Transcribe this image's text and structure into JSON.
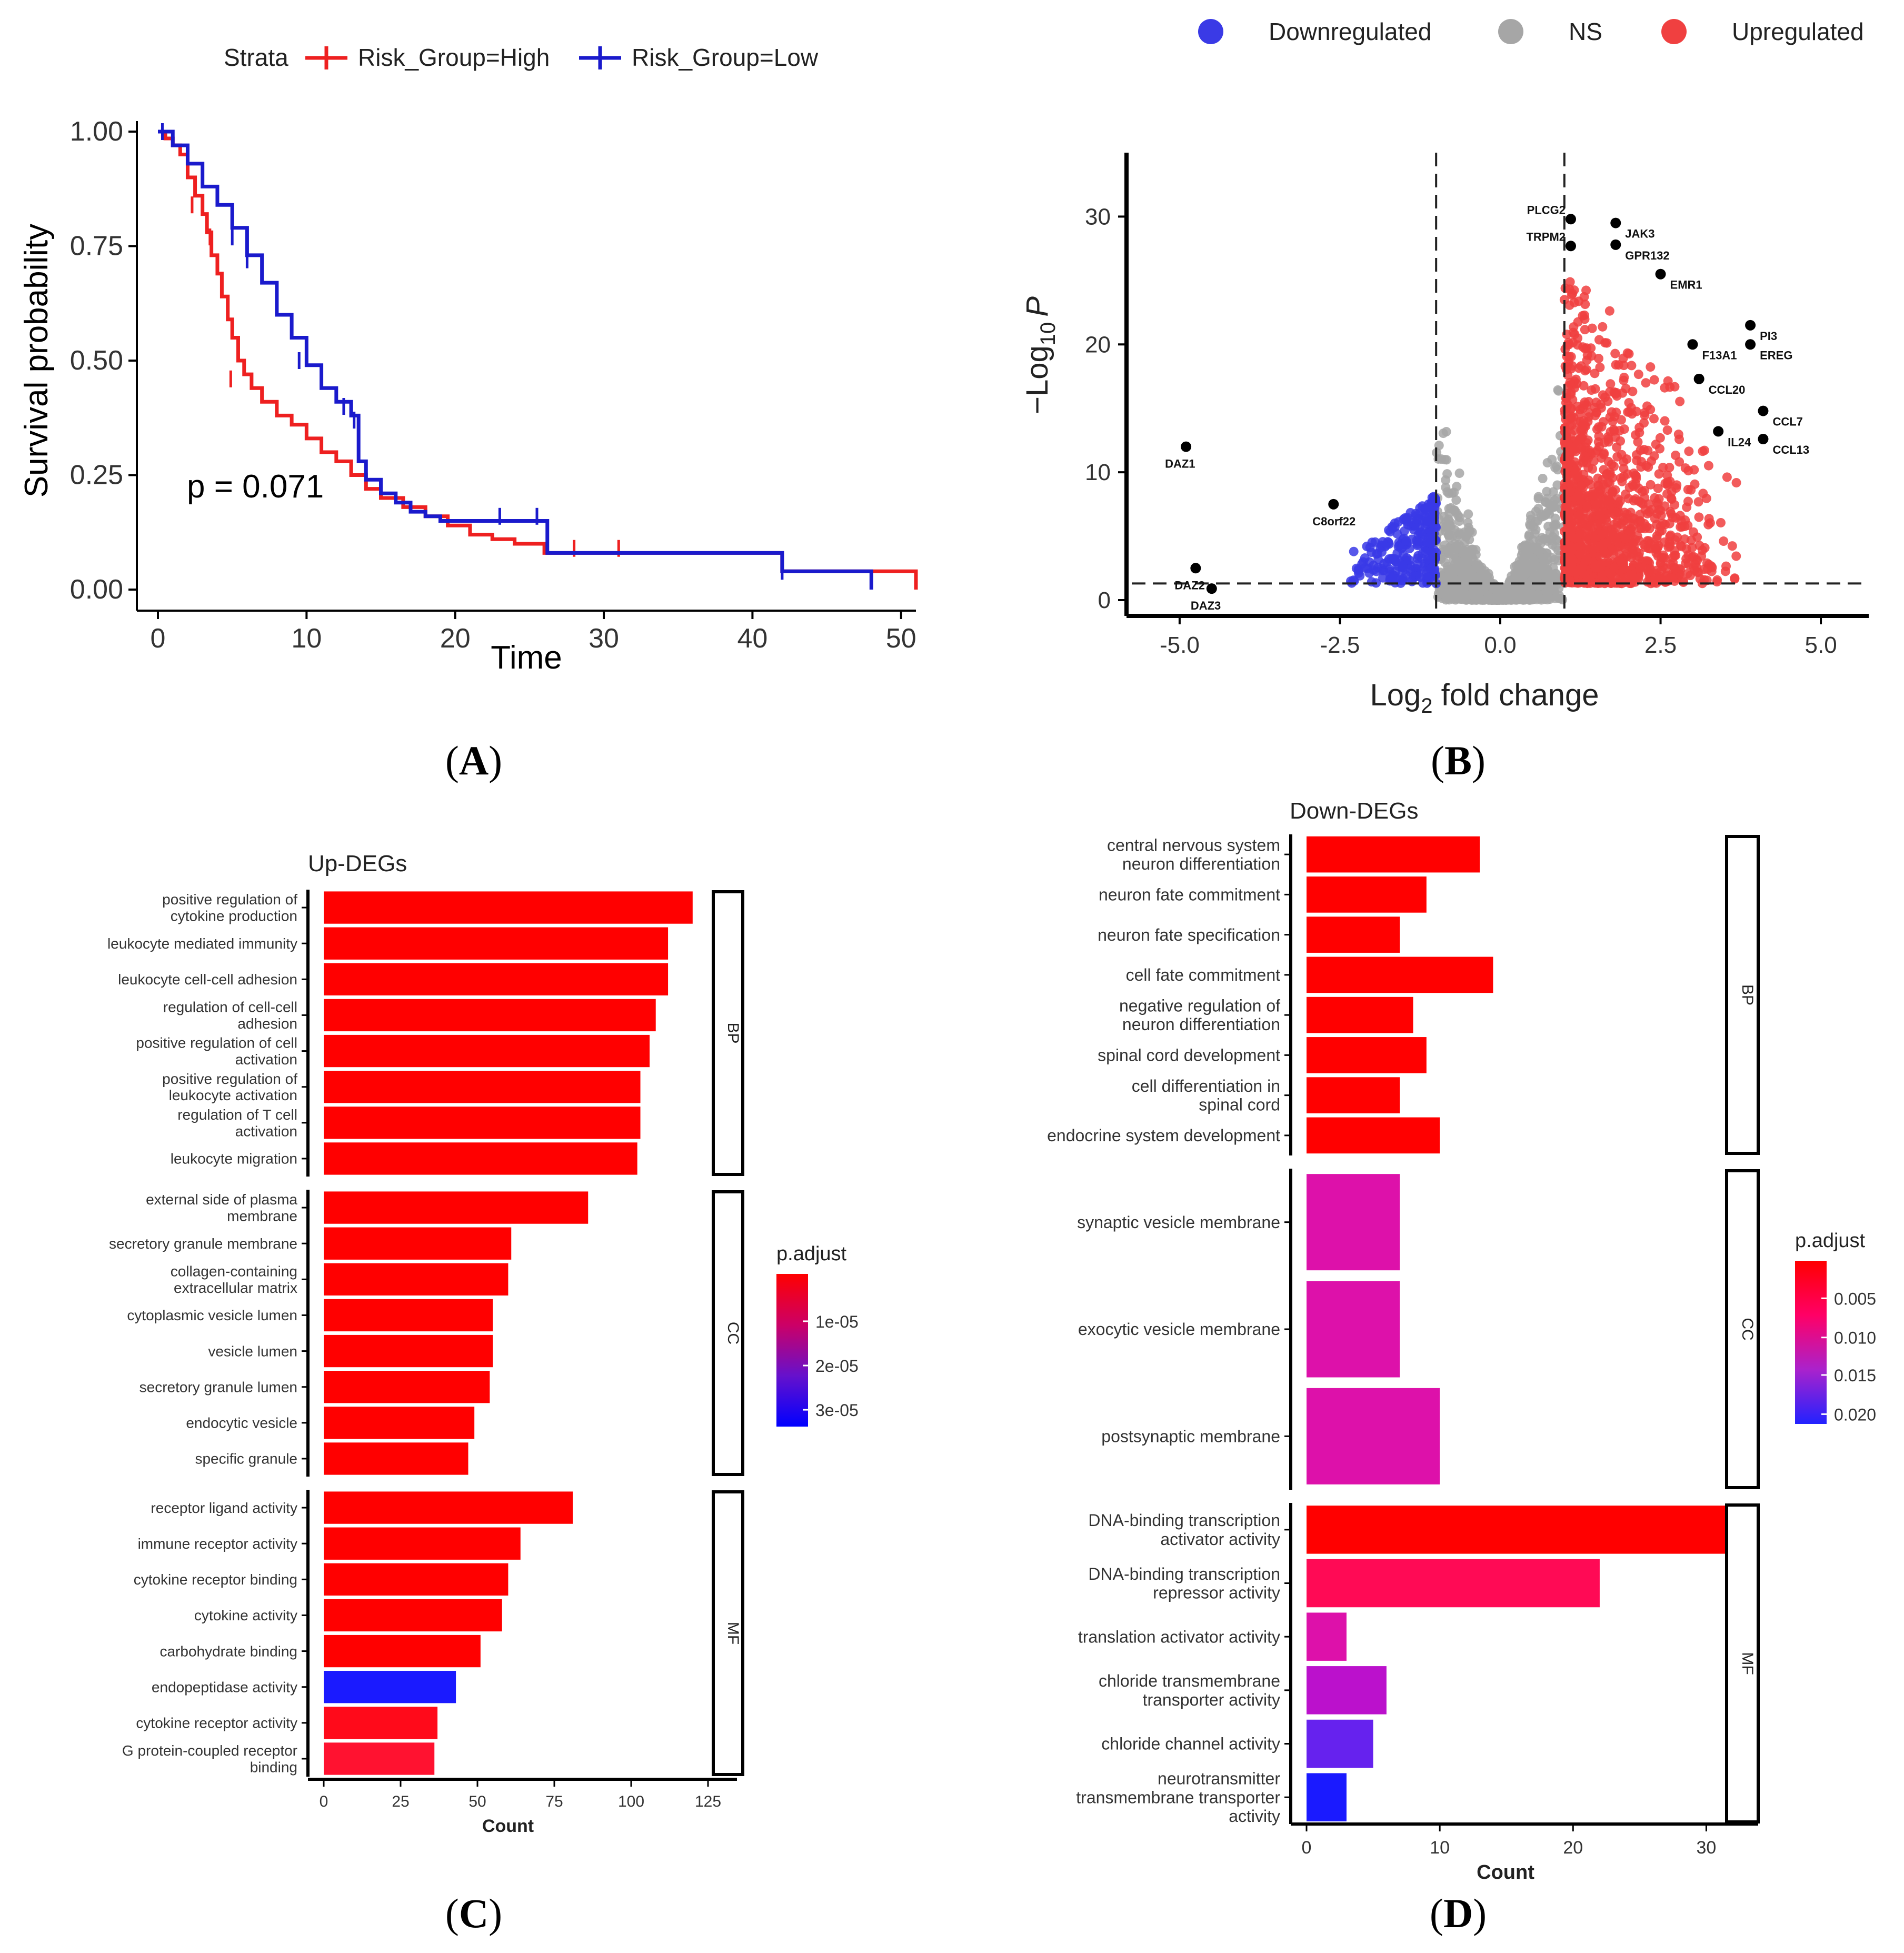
{
  "panels": {
    "A": "A",
    "B": "B",
    "C": "C",
    "D": "D"
  },
  "chart_data": [
    {
      "id": "A",
      "type": "line",
      "subtype": "kaplan-meier",
      "legend_title": "Strata",
      "legend_position": "top",
      "xlabel": "Time",
      "ylabel": "Survival probability",
      "xlim": [
        0,
        51
      ],
      "ylim": [
        0,
        1
      ],
      "xticks": [
        0,
        10,
        20,
        30,
        40,
        50
      ],
      "yticks": [
        0.0,
        0.25,
        0.5,
        0.75,
        1.0
      ],
      "ytick_labels": [
        "0.00",
        "0.25",
        "0.50",
        "0.75",
        "1.00"
      ],
      "annotation": "p = 0.071",
      "series": [
        {
          "name": "Risk_Group=High",
          "color": "#ee2020",
          "steps": [
            [
              0,
              1.0
            ],
            [
              0.5,
              0.985
            ],
            [
              1,
              0.97
            ],
            [
              1.5,
              0.95
            ],
            [
              2,
              0.9
            ],
            [
              2.5,
              0.86
            ],
            [
              3,
              0.82
            ],
            [
              3.3,
              0.78
            ],
            [
              3.6,
              0.73
            ],
            [
              4,
              0.69
            ],
            [
              4.3,
              0.64
            ],
            [
              4.7,
              0.59
            ],
            [
              5,
              0.55
            ],
            [
              5.4,
              0.5
            ],
            [
              5.8,
              0.47
            ],
            [
              6.3,
              0.44
            ],
            [
              7,
              0.41
            ],
            [
              8,
              0.38
            ],
            [
              9,
              0.36
            ],
            [
              10,
              0.33
            ],
            [
              11,
              0.3
            ],
            [
              12,
              0.28
            ],
            [
              13,
              0.25
            ],
            [
              14,
              0.22
            ],
            [
              15,
              0.2
            ],
            [
              16.5,
              0.18
            ],
            [
              18,
              0.16
            ],
            [
              19.5,
              0.14
            ],
            [
              21,
              0.12
            ],
            [
              22.5,
              0.11
            ],
            [
              24,
              0.1
            ],
            [
              26,
              0.08
            ],
            [
              42,
              0.04
            ],
            [
              51,
              0.0
            ]
          ],
          "censor": [
            [
              2.3,
              0.84
            ],
            [
              3.5,
              0.77
            ],
            [
              4.9,
              0.46
            ],
            [
              28,
              0.09
            ],
            [
              31,
              0.09
            ]
          ]
        },
        {
          "name": "Risk_Group=Low",
          "color": "#1a1acc",
          "steps": [
            [
              0,
              1.0
            ],
            [
              1,
              0.97
            ],
            [
              2,
              0.93
            ],
            [
              3,
              0.88
            ],
            [
              4,
              0.84
            ],
            [
              5,
              0.79
            ],
            [
              6,
              0.73
            ],
            [
              7,
              0.67
            ],
            [
              8,
              0.6
            ],
            [
              9,
              0.55
            ],
            [
              10,
              0.49
            ],
            [
              11,
              0.44
            ],
            [
              12,
              0.41
            ],
            [
              13,
              0.38
            ],
            [
              13.5,
              0.28
            ],
            [
              14,
              0.24
            ],
            [
              15,
              0.21
            ],
            [
              16,
              0.19
            ],
            [
              17,
              0.17
            ],
            [
              18,
              0.16
            ],
            [
              19,
              0.15
            ],
            [
              26,
              0.15
            ],
            [
              26.2,
              0.08
            ],
            [
              42,
              0.04
            ],
            [
              48,
              0.0
            ]
          ],
          "censor": [
            [
              0.3,
              1.0
            ],
            [
              5,
              0.77
            ],
            [
              6,
              0.72
            ],
            [
              8,
              0.63
            ],
            [
              9.5,
              0.5
            ],
            [
              12.5,
              0.4
            ],
            [
              13.2,
              0.37
            ],
            [
              23,
              0.16
            ],
            [
              25.5,
              0.16
            ],
            [
              42,
              0.04
            ]
          ]
        }
      ]
    },
    {
      "id": "B",
      "type": "scatter",
      "subtype": "volcano",
      "legend_position": "top",
      "legend": [
        {
          "label": "Downregulated",
          "color": "#3a3ae6"
        },
        {
          "label": "NS",
          "color": "#a6a6a6"
        },
        {
          "label": "Upregulated",
          "color": "#f04040"
        }
      ],
      "xlabel_main": "Log",
      "xlabel_sub": "2",
      "xlabel_tail": " fold change",
      "ylabel_main": "−Log",
      "ylabel_sub": "10",
      "ylabel_tail": "P",
      "xlim": [
        -5.5,
        5.5
      ],
      "ylim": [
        0,
        35
      ],
      "xticks": [
        -5.0,
        -2.5,
        0.0,
        2.5,
        5.0
      ],
      "xtick_labels": [
        "-5.0",
        "-2.5",
        "0.0",
        "2.5",
        "5.0"
      ],
      "yticks": [
        0,
        10,
        20,
        30
      ],
      "ytick_labels": [
        "0",
        "10",
        "20",
        "30"
      ],
      "thresholds": {
        "fc": [
          -1.0,
          1.0
        ],
        "p": 1.3
      },
      "labels": [
        {
          "text": "DAZ1",
          "x": -4.9,
          "y": 12.0
        },
        {
          "text": "DAZ2",
          "x": -4.75,
          "y": 2.5
        },
        {
          "text": "DAZ3",
          "x": -4.5,
          "y": 0.9
        },
        {
          "text": "C8orf22",
          "x": -2.6,
          "y": 7.5
        },
        {
          "text": "PLCG2",
          "x": 1.1,
          "y": 29.8
        },
        {
          "text": "JAK3",
          "x": 1.8,
          "y": 29.5
        },
        {
          "text": "TRPM2",
          "x": 1.1,
          "y": 27.7
        },
        {
          "text": "GPR132",
          "x": 1.8,
          "y": 27.8
        },
        {
          "text": "EMR1",
          "x": 2.5,
          "y": 25.5
        },
        {
          "text": "PI3",
          "x": 3.9,
          "y": 21.5
        },
        {
          "text": "F13A1",
          "x": 3.0,
          "y": 20.0
        },
        {
          "text": "EREG",
          "x": 3.9,
          "y": 20.0
        },
        {
          "text": "CCL20",
          "x": 3.1,
          "y": 17.3
        },
        {
          "text": "CCL7",
          "x": 4.1,
          "y": 14.8
        },
        {
          "text": "IL24",
          "x": 3.4,
          "y": 13.2
        },
        {
          "text": "CCL13",
          "x": 4.1,
          "y": 12.6
        }
      ]
    },
    {
      "id": "C",
      "type": "bar",
      "orientation": "horizontal",
      "title": "Up-DEGs",
      "xlabel": "Count",
      "xlim": [
        0,
        125
      ],
      "xticks": [
        0,
        25,
        50,
        75,
        100,
        125
      ],
      "colorbar": {
        "title": "p.adjust",
        "ticks": [
          "1e-05",
          "2e-05",
          "3e-05"
        ],
        "tick_fracs": [
          0.31,
          0.6,
          0.89
        ],
        "colors": [
          "#ff0000",
          "#cc0066",
          "#6611cc",
          "#0000ff"
        ]
      },
      "groups": [
        {
          "name": "BP",
          "bars": [
            {
              "label": [
                "positive regulation of",
                "cytokine production"
              ],
              "value": 120,
              "color": "#ff0000"
            },
            {
              "label": [
                "leukocyte mediated immunity"
              ],
              "value": 112,
              "color": "#ff0000"
            },
            {
              "label": [
                "leukocyte cell-cell adhesion"
              ],
              "value": 112,
              "color": "#ff0000"
            },
            {
              "label": [
                "regulation of cell-cell",
                "adhesion"
              ],
              "value": 108,
              "color": "#ff0000"
            },
            {
              "label": [
                "positive regulation of cell",
                "activation"
              ],
              "value": 106,
              "color": "#ff0000"
            },
            {
              "label": [
                "positive regulation of",
                "leukocyte activation"
              ],
              "value": 103,
              "color": "#ff0000"
            },
            {
              "label": [
                "regulation of T cell",
                "activation"
              ],
              "value": 103,
              "color": "#ff0000"
            },
            {
              "label": [
                "leukocyte migration"
              ],
              "value": 102,
              "color": "#ff0000"
            }
          ]
        },
        {
          "name": "CC",
          "bars": [
            {
              "label": [
                "external side of plasma",
                "membrane"
              ],
              "value": 86,
              "color": "#ff0000"
            },
            {
              "label": [
                "secretory granule membrane"
              ],
              "value": 61,
              "color": "#ff0000"
            },
            {
              "label": [
                "collagen-containing",
                "extracellular matrix"
              ],
              "value": 60,
              "color": "#ff0000"
            },
            {
              "label": [
                "cytoplasmic vesicle lumen"
              ],
              "value": 55,
              "color": "#ff0000"
            },
            {
              "label": [
                "vesicle lumen"
              ],
              "value": 55,
              "color": "#ff0000"
            },
            {
              "label": [
                "secretory granule lumen"
              ],
              "value": 54,
              "color": "#ff0000"
            },
            {
              "label": [
                "endocytic vesicle"
              ],
              "value": 49,
              "color": "#ff0000"
            },
            {
              "label": [
                "specific granule"
              ],
              "value": 47,
              "color": "#ff0000"
            }
          ]
        },
        {
          "name": "MF",
          "bars": [
            {
              "label": [
                "receptor ligand activity"
              ],
              "value": 81,
              "color": "#ff0000"
            },
            {
              "label": [
                "immune receptor activity"
              ],
              "value": 64,
              "color": "#ff0000"
            },
            {
              "label": [
                "cytokine receptor binding"
              ],
              "value": 60,
              "color": "#ff0000"
            },
            {
              "label": [
                "cytokine activity"
              ],
              "value": 58,
              "color": "#ff0000"
            },
            {
              "label": [
                "carbohydrate binding"
              ],
              "value": 51,
              "color": "#ff0000"
            },
            {
              "label": [
                "endopeptidase activity"
              ],
              "value": 43,
              "color": "#1a1aff"
            },
            {
              "label": [
                "cytokine receptor activity"
              ],
              "value": 37,
              "color": "#ff0a1a"
            },
            {
              "label": [
                "G protein-coupled receptor",
                "binding"
              ],
              "value": 36,
              "color": "#ff1230"
            }
          ]
        }
      ]
    },
    {
      "id": "D",
      "type": "bar",
      "orientation": "horizontal",
      "title": "Down-DEGs",
      "xlabel": "Count",
      "xlim": [
        0,
        35
      ],
      "xticks": [
        0,
        10,
        20,
        30
      ],
      "colorbar": {
        "title": "p.adjust",
        "ticks": [
          "0.005",
          "0.010",
          "0.015",
          "0.020"
        ],
        "tick_fracs": [
          0.23,
          0.47,
          0.7,
          0.94
        ],
        "colors": [
          "#ff0000",
          "#ff0066",
          "#aa22cc",
          "#2222ff"
        ]
      },
      "groups": [
        {
          "name": "BP",
          "bars": [
            {
              "label": [
                "central nervous system",
                "neuron differentiation"
              ],
              "value": 13,
              "color": "#ff0000"
            },
            {
              "label": [
                "neuron fate commitment"
              ],
              "value": 9,
              "color": "#ff0000"
            },
            {
              "label": [
                "neuron fate specification"
              ],
              "value": 7,
              "color": "#ff0000"
            },
            {
              "label": [
                "cell fate commitment"
              ],
              "value": 14,
              "color": "#ff0000"
            },
            {
              "label": [
                "negative regulation of",
                "neuron differentiation"
              ],
              "value": 8,
              "color": "#ff0000"
            },
            {
              "label": [
                "spinal cord development"
              ],
              "value": 9,
              "color": "#ff0000"
            },
            {
              "label": [
                "cell differentiation in",
                "spinal cord"
              ],
              "value": 7,
              "color": "#ff0000"
            },
            {
              "label": [
                "endocrine system development"
              ],
              "value": 10,
              "color": "#ff0000"
            }
          ]
        },
        {
          "name": "CC",
          "bars": [
            {
              "label": [
                "synaptic vesicle membrane"
              ],
              "value": 7,
              "color": "#dd11aa"
            },
            {
              "label": [
                "exocytic vesicle membrane"
              ],
              "value": 7,
              "color": "#dd11aa"
            },
            {
              "label": [
                "postsynaptic membrane"
              ],
              "value": 10,
              "color": "#dd11aa"
            }
          ]
        },
        {
          "name": "MF",
          "bars": [
            {
              "label": [
                "DNA-binding transcription",
                "activator activity"
              ],
              "value": 34,
              "color": "#ff0000"
            },
            {
              "label": [
                "DNA-binding transcription",
                "repressor activity"
              ],
              "value": 22,
              "color": "#ff0a55"
            },
            {
              "label": [
                "translation activator activity"
              ],
              "value": 3,
              "color": "#dd11aa"
            },
            {
              "label": [
                "chloride transmembrane",
                "transporter activity"
              ],
              "value": 6,
              "color": "#bb11cc"
            },
            {
              "label": [
                "chloride channel activity"
              ],
              "value": 5,
              "color": "#6622ee"
            },
            {
              "label": [
                "neurotransmitter",
                "transmembrane transporter",
                "activity"
              ],
              "value": 3,
              "color": "#1a1aff"
            }
          ]
        }
      ]
    }
  ]
}
